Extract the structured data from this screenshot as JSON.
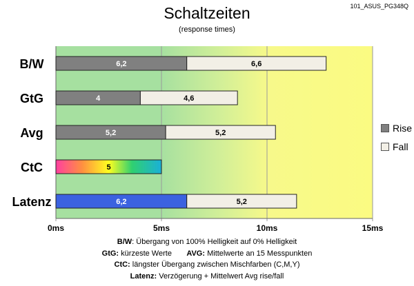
{
  "header": {
    "title": "Schaltzeiten",
    "subtitle": "(response times)",
    "code": "101_ASUS_PG348Q"
  },
  "legend": {
    "rise": "Rise",
    "fall": "Fall"
  },
  "notes": [
    {
      "key": "B/W",
      "text": ":  Übergang von 100% Helligkeit auf 0% Helligkeit"
    },
    {
      "key": "GtG:",
      "text": " kürzeste  Werte",
      "key2": "AVG:",
      "text2": " Mittelwerte  an 15 Messpunkten"
    },
    {
      "key": "CtC:",
      "text": " längster Übergang zwischen Mischfarben (C,M,Y)"
    },
    {
      "key": "Latenz:",
      "text": " Verzögerung  + Mittelwert Avg rise/fall"
    }
  ],
  "colors": {
    "rise": "#808080",
    "fall": "#f2efe6",
    "latenz": "#3b62e0"
  },
  "chart_data": {
    "type": "bar",
    "orientation": "horizontal",
    "stacked": true,
    "categories": [
      "B/W",
      "GtG",
      "Avg",
      "CtC",
      "Latenz"
    ],
    "series": [
      {
        "name": "Rise",
        "values": [
          6.2,
          4,
          5.2,
          5,
          6.2
        ],
        "labels": [
          "6,2",
          "4",
          "5,2",
          "5",
          "6,2"
        ]
      },
      {
        "name": "Fall",
        "values": [
          6.6,
          4.6,
          5.2,
          null,
          5.2
        ],
        "labels": [
          "6,6",
          "4,6",
          "5,2",
          "",
          "5,2"
        ]
      }
    ],
    "xlim": [
      0,
      15
    ],
    "xticks": [
      "0ms",
      "5ms",
      "10ms",
      "15ms"
    ],
    "background_zones": "green (0–5 ms) to yellow (10–15 ms) gradient",
    "legend_position": "right"
  }
}
